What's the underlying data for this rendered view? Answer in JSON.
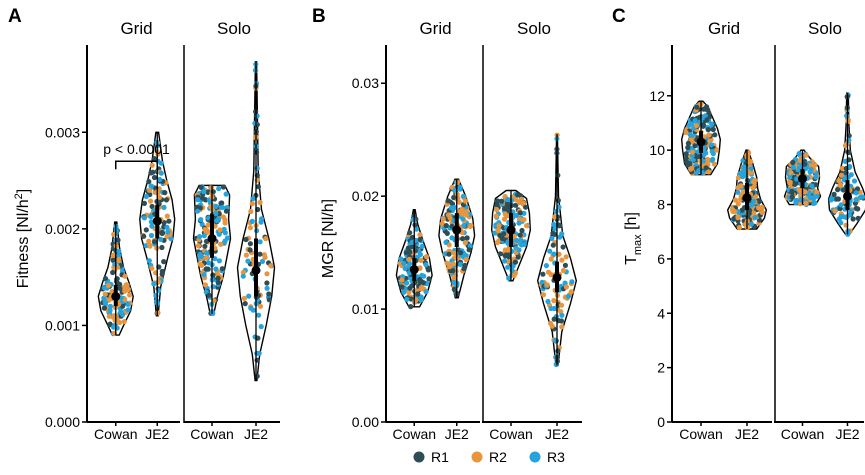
{
  "chart_data": [
    {
      "panel": "A",
      "type": "violin",
      "ylabel": "Fitness [Nl/h²]",
      "ylabel_main": "Fitness [Nl/h",
      "ylabel_sup": "2",
      "ylabel_end": "]",
      "ylim": [
        0,
        0.0038
      ],
      "yticks": [
        0.0,
        0.001,
        0.002,
        0.003
      ],
      "ytick_labels": [
        "0.000",
        "0.001",
        "0.002",
        "0.003"
      ],
      "facets": [
        {
          "name": "Grid",
          "groups": [
            {
              "category": "Cowan",
              "median": 0.0013,
              "q1": 0.0012,
              "q3": 0.00142,
              "min": 0.0009,
              "max": 0.00207,
              "density": [
                [
                  0.0009,
                  0.2
                ],
                [
                  0.001,
                  0.45
                ],
                [
                  0.00115,
                  0.85
                ],
                [
                  0.0013,
                  1.0
                ],
                [
                  0.00145,
                  0.75
                ],
                [
                  0.0016,
                  0.45
                ],
                [
                  0.0018,
                  0.22
                ],
                [
                  0.00207,
                  0.06
                ]
              ]
            },
            {
              "category": "JE2",
              "median": 0.00208,
              "q1": 0.0019,
              "q3": 0.00225,
              "min": 0.0011,
              "max": 0.003,
              "density": [
                [
                  0.0011,
                  0.05
                ],
                [
                  0.0014,
                  0.2
                ],
                [
                  0.0017,
                  0.6
                ],
                [
                  0.0019,
                  0.9
                ],
                [
                  0.0021,
                  1.0
                ],
                [
                  0.0023,
                  0.85
                ],
                [
                  0.0025,
                  0.55
                ],
                [
                  0.0027,
                  0.3
                ],
                [
                  0.003,
                  0.08
                ]
              ]
            }
          ],
          "annotation": {
            "text": "p < 0.0001",
            "from": "Cowan",
            "to": "JE2",
            "y": 0.0027
          }
        },
        {
          "name": "Solo",
          "groups": [
            {
              "category": "Cowan",
              "median": 0.0019,
              "q1": 0.0017,
              "q3": 0.00215,
              "min": 0.00112,
              "max": 0.00245,
              "density": [
                [
                  0.00112,
                  0.1
                ],
                [
                  0.0013,
                  0.3
                ],
                [
                  0.0015,
                  0.6
                ],
                [
                  0.0017,
                  0.8
                ],
                [
                  0.0019,
                  1.0
                ],
                [
                  0.0021,
                  0.9
                ],
                [
                  0.00235,
                  0.95
                ],
                [
                  0.00245,
                  0.7
                ]
              ]
            },
            {
              "category": "JE2",
              "median": 0.00157,
              "q1": 0.0013,
              "q3": 0.0019,
              "min": 0.00043,
              "max": 0.00373,
              "density": [
                [
                  0.00043,
                  0.05
                ],
                [
                  0.0007,
                  0.2
                ],
                [
                  0.001,
                  0.55
                ],
                [
                  0.0013,
                  0.85
                ],
                [
                  0.0016,
                  1.0
                ],
                [
                  0.0019,
                  0.7
                ],
                [
                  0.0022,
                  0.3
                ],
                [
                  0.0026,
                  0.12
                ],
                [
                  0.00373,
                  0.03
                ]
              ]
            }
          ]
        }
      ]
    },
    {
      "panel": "B",
      "type": "violin",
      "ylabel": "MGR [Nl/h]",
      "ylim": [
        0,
        0.0325
      ],
      "yticks": [
        0.0,
        0.01,
        0.02,
        0.03
      ],
      "ytick_labels": [
        "0.00",
        "0.01",
        "0.02",
        "0.03"
      ],
      "facets": [
        {
          "name": "Grid",
          "groups": [
            {
              "category": "Cowan",
              "median": 0.0135,
              "q1": 0.0125,
              "q3": 0.0145,
              "min": 0.0102,
              "max": 0.0188,
              "density": [
                [
                  0.0102,
                  0.3
                ],
                [
                  0.0115,
                  0.75
                ],
                [
                  0.013,
                  1.0
                ],
                [
                  0.0145,
                  0.85
                ],
                [
                  0.016,
                  0.5
                ],
                [
                  0.0175,
                  0.2
                ],
                [
                  0.0188,
                  0.05
                ]
              ]
            },
            {
              "category": "JE2",
              "median": 0.017,
              "q1": 0.0155,
              "q3": 0.0185,
              "min": 0.011,
              "max": 0.0215,
              "density": [
                [
                  0.011,
                  0.08
                ],
                [
                  0.013,
                  0.4
                ],
                [
                  0.015,
                  0.8
                ],
                [
                  0.0165,
                  1.0
                ],
                [
                  0.018,
                  0.9
                ],
                [
                  0.02,
                  0.5
                ],
                [
                  0.0215,
                  0.1
                ]
              ]
            }
          ]
        },
        {
          "name": "Solo",
          "groups": [
            {
              "category": "Cowan",
              "median": 0.017,
              "q1": 0.0155,
              "q3": 0.0185,
              "min": 0.0125,
              "max": 0.0205,
              "density": [
                [
                  0.0125,
                  0.1
                ],
                [
                  0.014,
                  0.45
                ],
                [
                  0.0155,
                  0.8
                ],
                [
                  0.017,
                  1.0
                ],
                [
                  0.0185,
                  0.95
                ],
                [
                  0.0198,
                  0.8
                ],
                [
                  0.0205,
                  0.25
                ]
              ]
            },
            {
              "category": "JE2",
              "median": 0.0128,
              "q1": 0.0115,
              "q3": 0.0142,
              "min": 0.005,
              "max": 0.0255,
              "density": [
                [
                  0.005,
                  0.05
                ],
                [
                  0.008,
                  0.25
                ],
                [
                  0.0105,
                  0.7
                ],
                [
                  0.0125,
                  1.0
                ],
                [
                  0.0145,
                  0.7
                ],
                [
                  0.0165,
                  0.3
                ],
                [
                  0.02,
                  0.08
                ],
                [
                  0.0255,
                  0.02
                ]
              ]
            }
          ]
        }
      ]
    },
    {
      "panel": "C",
      "type": "violin",
      "ylabel": "Tmax [h]",
      "ylabel_main": "T",
      "ylabel_sub": "max",
      "ylabel_end": " [h]",
      "ylim": [
        0,
        13.5
      ],
      "yticks": [
        0,
        2,
        4,
        6,
        8,
        10,
        12
      ],
      "ytick_labels": [
        "0",
        "2",
        "4",
        "6",
        "8",
        "10",
        "12"
      ],
      "facets": [
        {
          "name": "Grid",
          "groups": [
            {
              "category": "Cowan",
              "median": 10.3,
              "q1": 9.9,
              "q3": 10.7,
              "min": 9.1,
              "max": 11.8,
              "density": [
                [
                  9.1,
                  0.5
                ],
                [
                  9.5,
                  0.85
                ],
                [
                  10.0,
                  0.95
                ],
                [
                  10.4,
                  1.0
                ],
                [
                  10.8,
                  0.85
                ],
                [
                  11.2,
                  0.6
                ],
                [
                  11.6,
                  0.35
                ],
                [
                  11.8,
                  0.1
                ]
              ]
            },
            {
              "category": "JE2",
              "median": 8.25,
              "q1": 7.8,
              "q3": 8.8,
              "min": 7.1,
              "max": 10.0,
              "density": [
                [
                  7.1,
                  0.5
                ],
                [
                  7.5,
                  0.9
                ],
                [
                  7.8,
                  1.0
                ],
                [
                  8.2,
                  0.7
                ],
                [
                  8.6,
                  0.55
                ],
                [
                  9.0,
                  0.5
                ],
                [
                  9.5,
                  0.3
                ],
                [
                  10.0,
                  0.05
                ]
              ]
            }
          ]
        },
        {
          "name": "Solo",
          "groups": [
            {
              "category": "Cowan",
              "median": 8.95,
              "q1": 8.6,
              "q3": 9.3,
              "min": 8.0,
              "max": 10.0,
              "density": [
                [
                  8.0,
                  0.7
                ],
                [
                  8.3,
                  0.95
                ],
                [
                  8.6,
                  0.8
                ],
                [
                  9.0,
                  0.9
                ],
                [
                  9.4,
                  0.85
                ],
                [
                  9.7,
                  0.4
                ],
                [
                  10.0,
                  0.08
                ]
              ]
            },
            {
              "category": "JE2",
              "median": 8.3,
              "q1": 7.8,
              "q3": 8.9,
              "min": 6.9,
              "max": 12.1,
              "density": [
                [
                  6.9,
                  0.1
                ],
                [
                  7.3,
                  0.5
                ],
                [
                  7.8,
                  0.95
                ],
                [
                  8.2,
                  1.0
                ],
                [
                  8.6,
                  0.8
                ],
                [
                  9.2,
                  0.4
                ],
                [
                  10.0,
                  0.15
                ],
                [
                  11.0,
                  0.07
                ],
                [
                  12.1,
                  0.04
                ]
              ]
            }
          ]
        }
      ]
    }
  ],
  "legend": {
    "placement": "bottom",
    "entries": [
      {
        "label": "R1",
        "color": "#2e4d55"
      },
      {
        "label": "R2",
        "color": "#e8953d"
      },
      {
        "label": "R3",
        "color": "#25a3dc"
      }
    ]
  },
  "colors": {
    "R1": "#2e4d55",
    "R2": "#e8953d",
    "R3": "#25a3dc",
    "summary": "#000000"
  }
}
